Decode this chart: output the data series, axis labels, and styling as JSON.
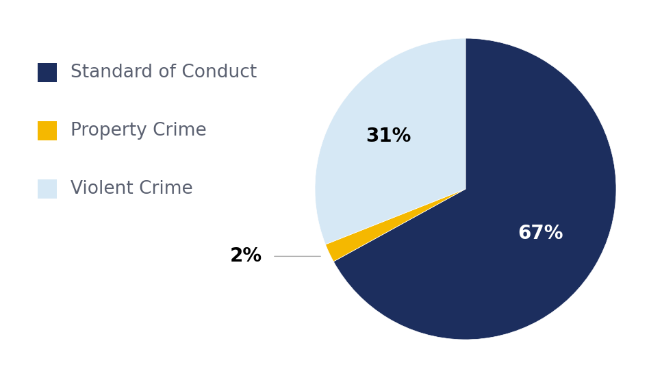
{
  "labels": [
    "Standard of Conduct",
    "Property Crime",
    "Violent Crime"
  ],
  "values": [
    67,
    2,
    31
  ],
  "colors": [
    "#1c2e5e",
    "#f5b800",
    "#d6e8f5"
  ],
  "label_colors": [
    "white",
    "black",
    "black"
  ],
  "label_fontsize": 20,
  "legend_fontsize": 19,
  "legend_text_color": "#5a6070",
  "background_color": "#ffffff",
  "pie_pct_labels": [
    "67%",
    "2%",
    "31%"
  ]
}
